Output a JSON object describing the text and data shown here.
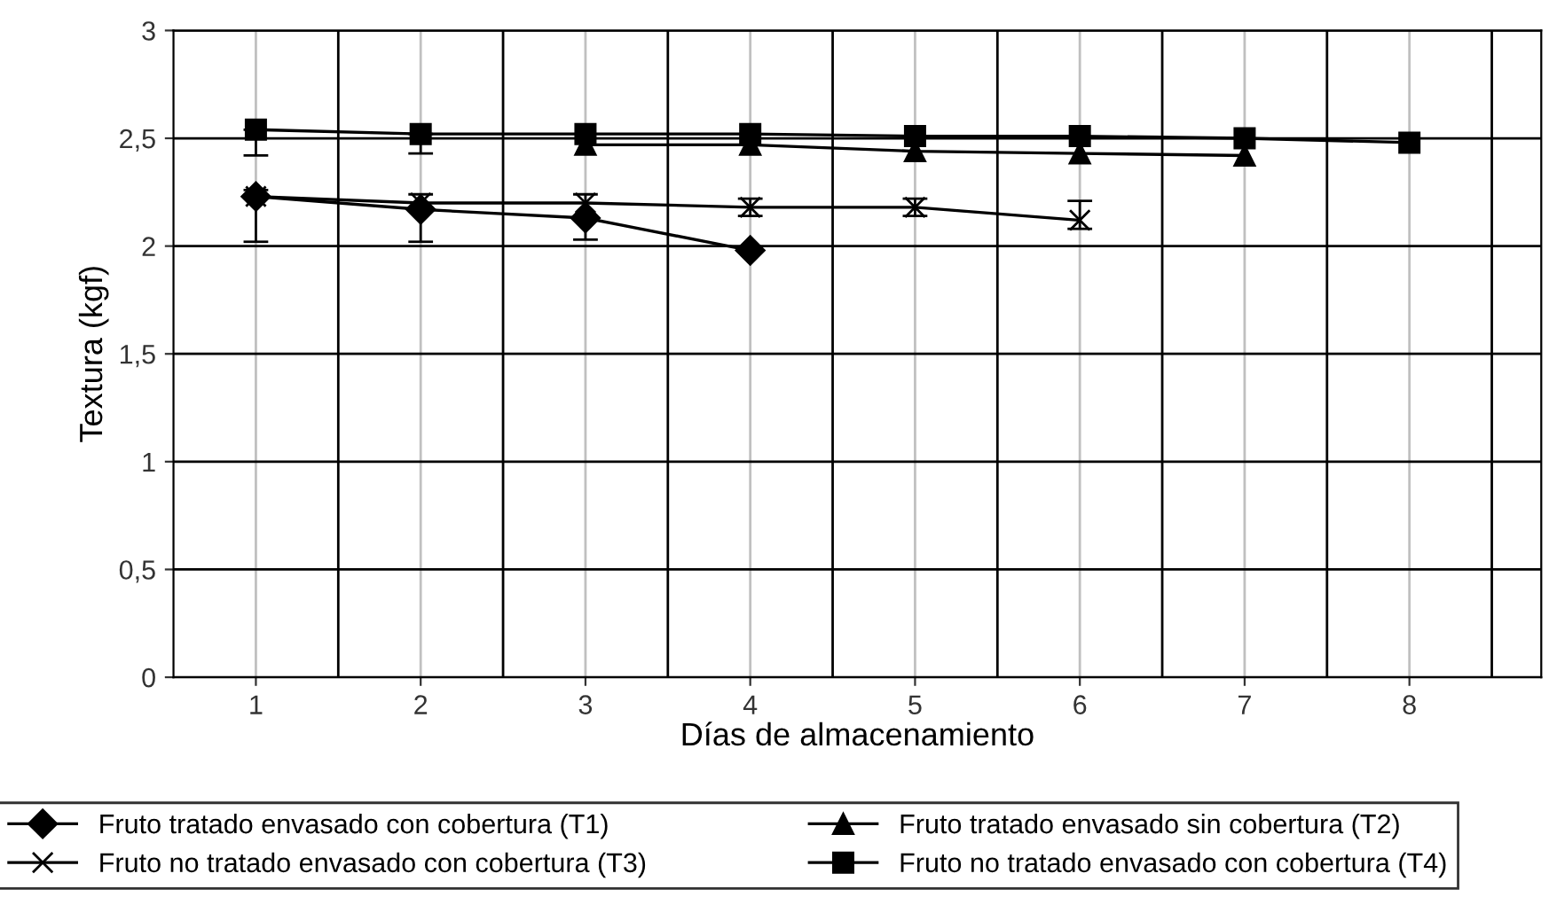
{
  "chart_data": {
    "type": "line",
    "xlabel": "Días de almacenamiento",
    "ylabel": "Textura (kgf)",
    "x": [
      1,
      2,
      3,
      4,
      5,
      6,
      7,
      8
    ],
    "series": [
      {
        "name": "Fruto tratado envasado con cobertura (T1)",
        "color": "#000000",
        "marker": "diamond",
        "values": [
          2.23,
          2.17,
          2.13,
          1.98,
          null,
          null,
          null,
          null
        ]
      },
      {
        "name": "Fruto tratado envasado sin cobertura (T2)",
        "color": "#000000",
        "marker": "triangle",
        "values": [
          null,
          null,
          2.47,
          2.47,
          2.44,
          2.43,
          2.42,
          null
        ]
      },
      {
        "name": "Fruto no tratado envasado con cobertura (T3)",
        "color": "#000000",
        "marker": "cross",
        "values": [
          2.23,
          2.2,
          2.2,
          2.18,
          2.18,
          2.12,
          null,
          null
        ],
        "errors": [
          [
            2.02,
            2.26
          ],
          [
            2.02,
            2.24
          ],
          [
            2.03,
            2.24
          ],
          [
            2.14,
            2.22
          ],
          [
            2.14,
            2.22
          ],
          [
            2.08,
            2.21
          ],
          null,
          null
        ]
      },
      {
        "name": "Fruto no tratado envasado con cobertura (T4)",
        "color": "#000000",
        "marker": "square",
        "values": [
          2.54,
          2.52,
          2.52,
          2.52,
          2.51,
          2.51,
          2.5,
          2.48
        ],
        "errors": [
          [
            2.42,
            2.54
          ],
          [
            2.43,
            2.52
          ],
          null,
          null,
          null,
          null,
          null,
          null
        ]
      }
    ],
    "xlim": [
      0.5,
      8.8
    ],
    "ylim": [
      0,
      3
    ],
    "xticks": [
      1,
      2,
      3,
      4,
      5,
      6,
      7,
      8
    ],
    "yticks": [
      {
        "value": 0,
        "label": "0"
      },
      {
        "value": 0.5,
        "label": "0,5"
      },
      {
        "value": 1,
        "label": "1"
      },
      {
        "value": 1.5,
        "label": "1,5"
      },
      {
        "value": 2,
        "label": "2"
      },
      {
        "value": 2.5,
        "label": "2,5"
      },
      {
        "value": 3,
        "label": "3"
      }
    ],
    "grid": true,
    "legend": "bottom",
    "line_style": "solid"
  }
}
